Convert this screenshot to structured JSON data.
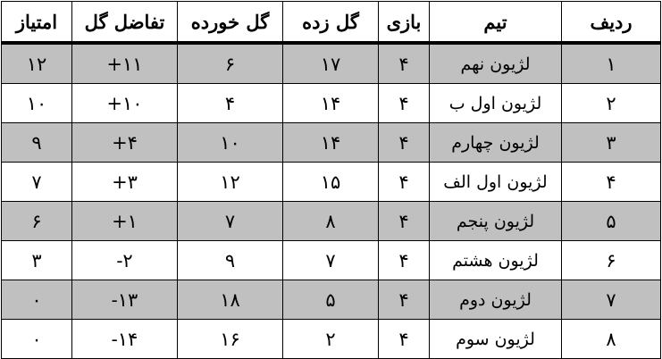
{
  "headers": [
    "ردیف",
    "تیم",
    "بازی",
    "گل زده",
    "گل خورده",
    "تفاضل گل",
    "امتیاز"
  ],
  "rows": [
    {
      "rank": "۱",
      "team": "لژیون نهم",
      "played": "۴",
      "scored": "۱۷",
      "conceded": "۶",
      "diff": "+۱۱",
      "points": "۱۲"
    },
    {
      "rank": "۲",
      "team": "لژیون اول ب",
      "played": "۴",
      "scored": "۱۴",
      "conceded": "۴",
      "diff": "+۱۰",
      "points": "۱۰"
    },
    {
      "rank": "۳",
      "team": "لژیون چهارم",
      "played": "۴",
      "scored": "۱۴",
      "conceded": "۱۰",
      "diff": "+۴",
      "points": "۹"
    },
    {
      "rank": "۴",
      "team": "لژیون اول الف",
      "played": "۴",
      "scored": "۱۵",
      "conceded": "۱۲",
      "diff": "+۳",
      "points": "۷"
    },
    {
      "rank": "۵",
      "team": "لژیون پنجم",
      "played": "۴",
      "scored": "۸",
      "conceded": "۷",
      "diff": "+۱",
      "points": "۶"
    },
    {
      "rank": "۶",
      "team": "لژیون هشتم",
      "played": "۴",
      "scored": "۷",
      "conceded": "۹",
      "diff": "-۲",
      "points": "۳"
    },
    {
      "rank": "۷",
      "team": "لژیون دوم",
      "played": "۴",
      "scored": "۵",
      "conceded": "۱۸",
      "diff": "-۱۳",
      "points": "۰"
    },
    {
      "rank": "۸",
      "team": "لژیون سوم",
      "played": "۴",
      "scored": "۲",
      "conceded": "۱۶",
      "diff": "-۱۴",
      "points": "۰"
    }
  ],
  "colors": {
    "shaded_row": "#c0c0c0",
    "border": "#000000"
  }
}
